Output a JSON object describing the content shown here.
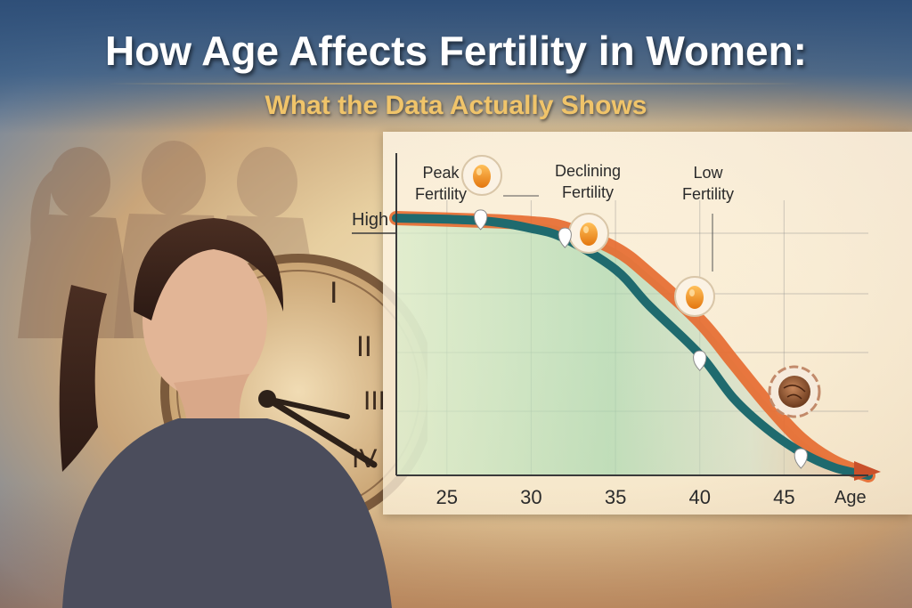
{
  "header": {
    "title": "How Age Affects Fertility in Women:",
    "subtitle": "What the Data Actually Shows"
  },
  "chart_data": {
    "type": "area",
    "title": "",
    "xlabel": "Age",
    "ylabel": "",
    "x_ticks": [
      25,
      30,
      35,
      40,
      45
    ],
    "xlim": [
      22,
      50
    ],
    "ylim": [
      0,
      100
    ],
    "y_tick_label": "High",
    "grid": true,
    "series": [
      {
        "color": "#1f6a6e",
        "x": [
          22,
          27,
          30,
          32,
          35,
          37,
          40,
          42,
          44,
          46,
          48,
          50
        ],
        "y": [
          100,
          99,
          96,
          92,
          80,
          66,
          47,
          30,
          18,
          9,
          3,
          0
        ]
      },
      {
        "color": "#e6692d",
        "x": [
          22,
          27,
          30,
          32,
          35,
          37,
          40,
          42,
          44,
          46,
          48,
          50
        ],
        "y": [
          100,
          99,
          98,
          96,
          88,
          78,
          60,
          44,
          28,
          14,
          5,
          0
        ]
      }
    ],
    "annotations": [
      {
        "id": "peak",
        "lines": [
          "Peak",
          "Fertility"
        ],
        "x": 27,
        "y": 99
      },
      {
        "id": "declining",
        "lines": [
          "Declining",
          "Fertility"
        ],
        "x": 32,
        "y": 92
      },
      {
        "id": "low",
        "lines": [
          "Low",
          "Fertility"
        ],
        "x": 40,
        "y": 47
      }
    ],
    "markers": [
      {
        "x": 27,
        "y": 99
      },
      {
        "x": 32,
        "y": 92
      },
      {
        "x": 40,
        "y": 47
      },
      {
        "x": 46,
        "y": 9
      }
    ]
  },
  "colors": {
    "teal": "#1f6a6e",
    "orange": "#e6692d",
    "egg": "#f08a1e",
    "gold": "#f0c46a"
  },
  "icons": [
    "egg-icon",
    "aged-egg-icon",
    "clock-icon",
    "woman-silhouette-icon"
  ]
}
